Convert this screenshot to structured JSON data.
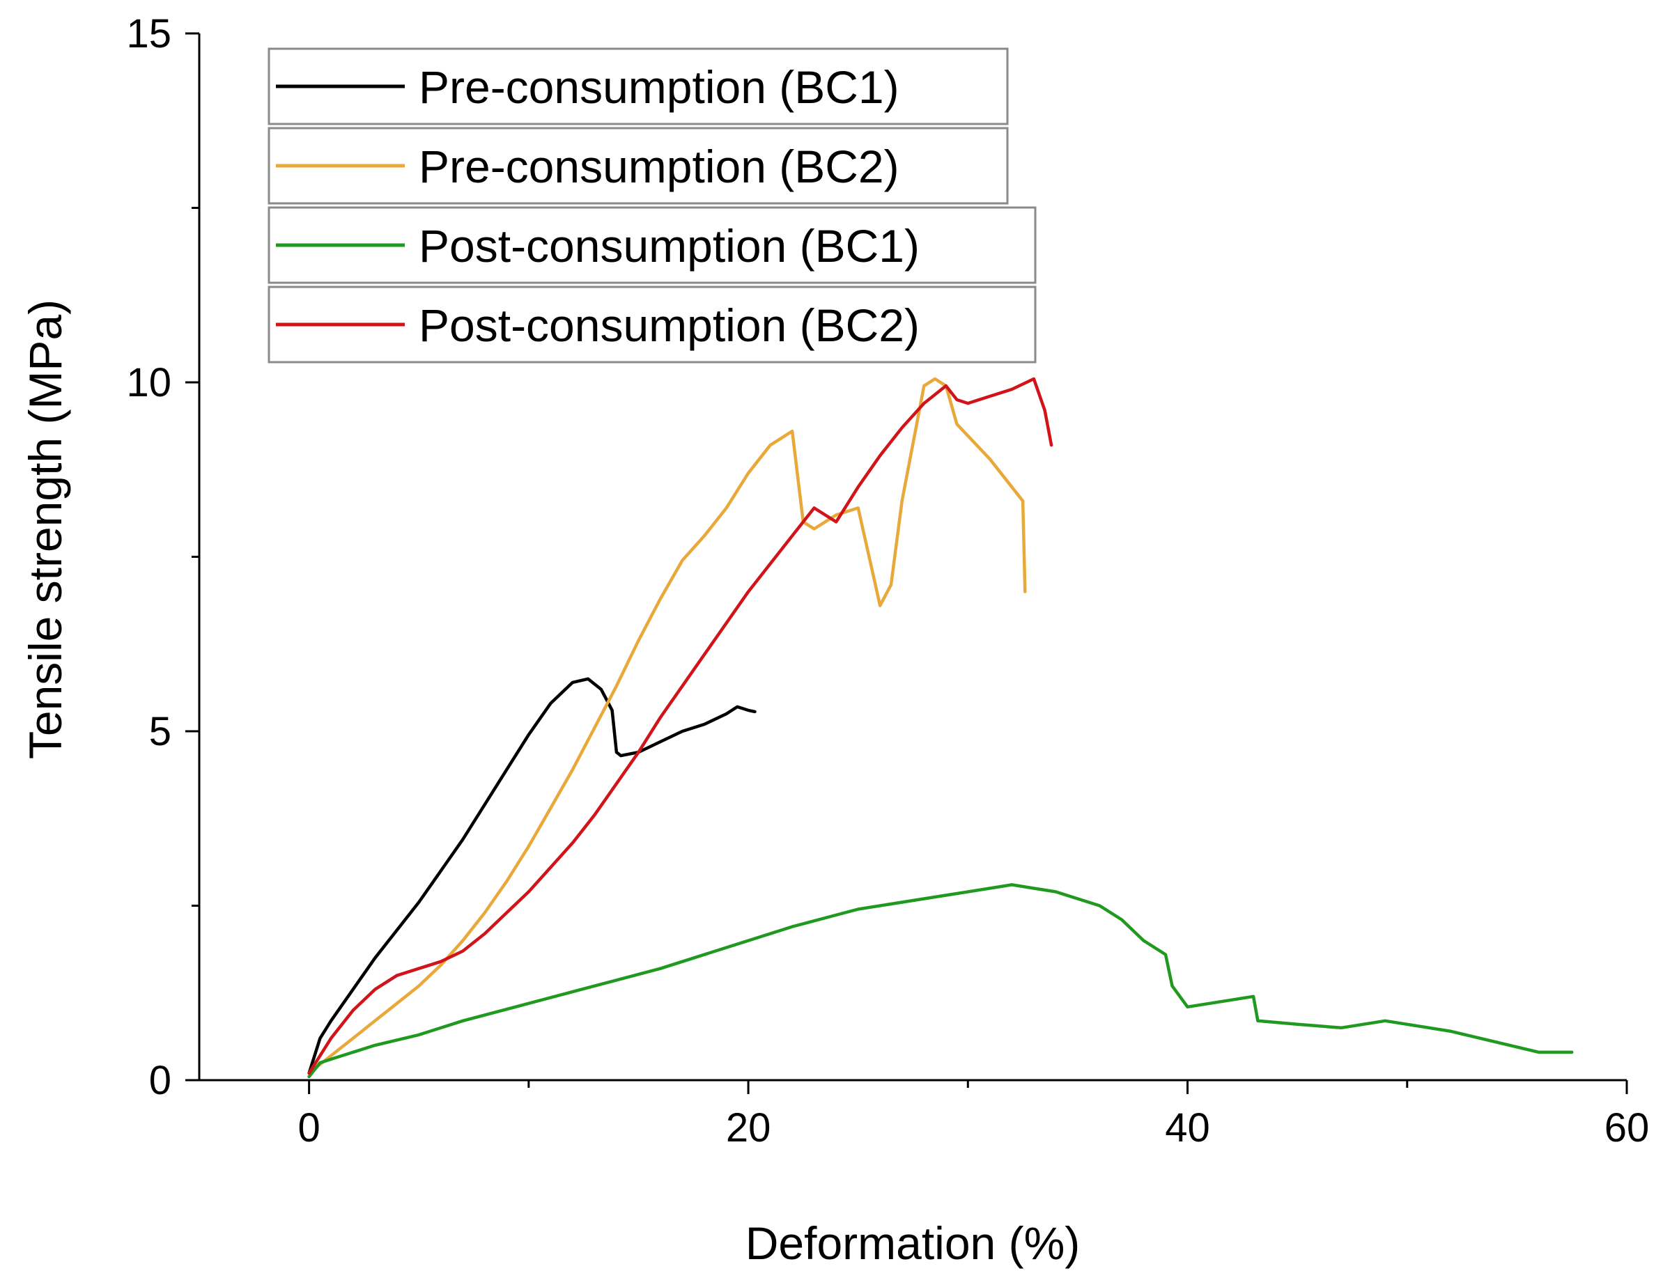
{
  "chart_data": {
    "type": "line",
    "title": "",
    "xlabel": "Deformation (%)",
    "ylabel": "Tensile strength (MPa)",
    "xlim": [
      -5,
      60
    ],
    "ylim": [
      0,
      15
    ],
    "xticks": [
      0,
      20,
      40,
      60
    ],
    "xtick_labels": [
      "0",
      "20",
      "40",
      "60"
    ],
    "yticks": [
      0,
      5,
      10,
      15
    ],
    "ytick_labels": [
      "0",
      "5",
      "10",
      "15"
    ],
    "grid": false,
    "legend_position": "top-left",
    "series": [
      {
        "name": "Pre-consumption (BC1)",
        "color": "#000000",
        "x": [
          0,
          0.5,
          1,
          2,
          3,
          4,
          5,
          6,
          7,
          8,
          9,
          10,
          11,
          12,
          12.7,
          13.3,
          13.8,
          14,
          14.2,
          15,
          16,
          17,
          18,
          19,
          19.5,
          20,
          20.3
        ],
        "y": [
          0.1,
          0.6,
          0.85,
          1.3,
          1.75,
          2.15,
          2.55,
          3.0,
          3.45,
          3.95,
          4.45,
          4.95,
          5.4,
          5.7,
          5.75,
          5.6,
          5.3,
          4.7,
          4.65,
          4.7,
          4.85,
          5.0,
          5.1,
          5.25,
          5.35,
          5.3,
          5.28
        ]
      },
      {
        "name": "Pre-consumption (BC2)",
        "color": "#E8A83A",
        "x": [
          0,
          1,
          2,
          3,
          4,
          5,
          6,
          7,
          8,
          9,
          10,
          11,
          12,
          13,
          14,
          15,
          16,
          17,
          18,
          19,
          20,
          21,
          21.5,
          22,
          22.5,
          23,
          24,
          25,
          25.5,
          26,
          26.5,
          27,
          28,
          28.5,
          29,
          29.5,
          31,
          32.5,
          32.6
        ],
        "y": [
          0.1,
          0.35,
          0.6,
          0.85,
          1.1,
          1.35,
          1.65,
          2.0,
          2.4,
          2.85,
          3.35,
          3.9,
          4.45,
          5.05,
          5.65,
          6.3,
          6.9,
          7.45,
          7.8,
          8.2,
          8.7,
          9.1,
          9.2,
          9.3,
          8.0,
          7.9,
          8.1,
          8.2,
          7.5,
          6.8,
          7.1,
          8.3,
          9.95,
          10.05,
          9.95,
          9.4,
          8.9,
          8.3,
          7.0
        ]
      },
      {
        "name": "Post-consumption (BC1)",
        "color": "#1F9A1F",
        "x": [
          0,
          0.5,
          1,
          2,
          3,
          5,
          7,
          10,
          13,
          16,
          19,
          22,
          25,
          27,
          29,
          31,
          32,
          33,
          34,
          35,
          36,
          37,
          38,
          39,
          39.3,
          40,
          42,
          43,
          43.2,
          45,
          47,
          49,
          50,
          52,
          54,
          56,
          57.5
        ],
        "y": [
          0.05,
          0.25,
          0.3,
          0.4,
          0.5,
          0.65,
          0.85,
          1.1,
          1.35,
          1.6,
          1.9,
          2.2,
          2.45,
          2.55,
          2.65,
          2.75,
          2.8,
          2.75,
          2.7,
          2.6,
          2.5,
          2.3,
          2.0,
          1.8,
          1.35,
          1.05,
          1.15,
          1.2,
          0.85,
          0.8,
          0.75,
          0.85,
          0.8,
          0.7,
          0.55,
          0.4,
          0.4
        ]
      },
      {
        "name": "Post-consumption (BC2)",
        "color": "#D0141A",
        "x": [
          0,
          1,
          2,
          3,
          4,
          5,
          6,
          7,
          8,
          9,
          10,
          11,
          12,
          13,
          14,
          15,
          16,
          17,
          18,
          19,
          20,
          21,
          22,
          23,
          24,
          25,
          26,
          27,
          28,
          29,
          29.5,
          30,
          31,
          32,
          33,
          33.5,
          33.8
        ],
        "y": [
          0.1,
          0.6,
          1.0,
          1.3,
          1.5,
          1.6,
          1.7,
          1.85,
          2.1,
          2.4,
          2.7,
          3.05,
          3.4,
          3.8,
          4.25,
          4.7,
          5.2,
          5.65,
          6.1,
          6.55,
          7.0,
          7.4,
          7.8,
          8.2,
          8.0,
          8.5,
          8.95,
          9.35,
          9.7,
          9.95,
          9.75,
          9.7,
          9.8,
          9.9,
          10.05,
          9.6,
          9.1
        ]
      }
    ]
  }
}
